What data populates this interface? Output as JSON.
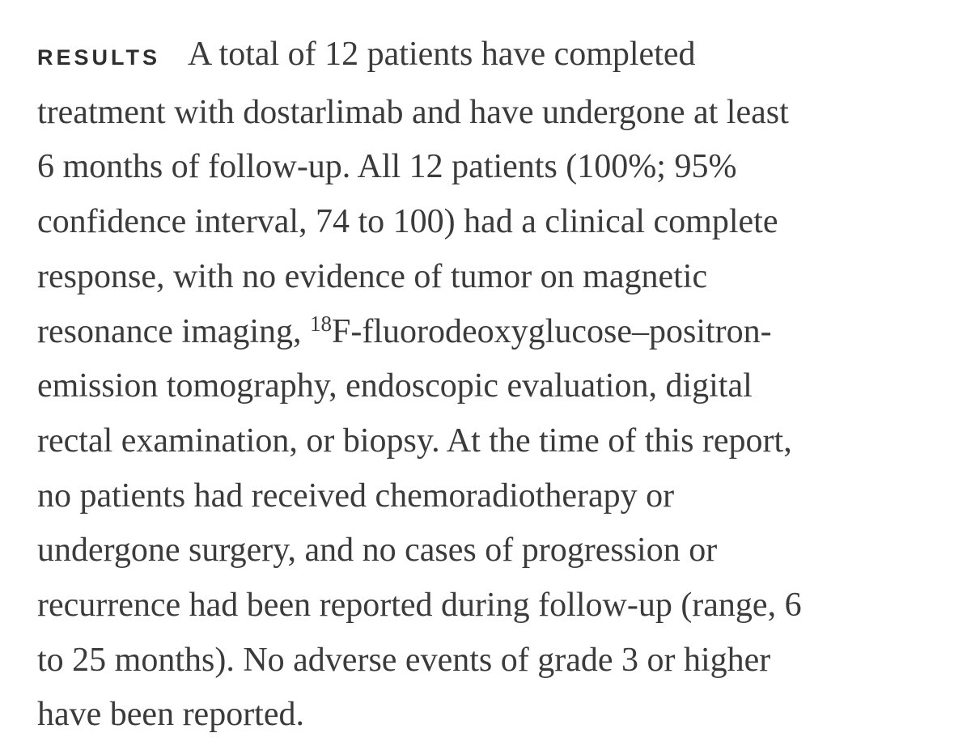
{
  "section": {
    "label": "RESULTS",
    "lines": [
      "A total of 12 patients have completed",
      "treatment with dostarlimab and have undergone at least",
      "6 months of follow-up. All 12 patients (100%; 95%",
      "confidence interval, 74 to 100) had a clinical complete",
      "response, with no evidence of tumor on magnetic",
      {
        "before": "resonance imaging, ",
        "sup": "18",
        "after": "F-fluorodeoxyglucose–positron-"
      },
      "emission tomography, endoscopic evaluation, digital",
      "rectal examination, or biopsy. At the time of this report,",
      "no patients had received chemoradiotherapy or",
      "undergone surgery, and no cases of progression or",
      "recurrence had been reported during follow-up (range, 6",
      "to 25 months). No adverse events of grade 3 or higher",
      "have been reported."
    ]
  }
}
